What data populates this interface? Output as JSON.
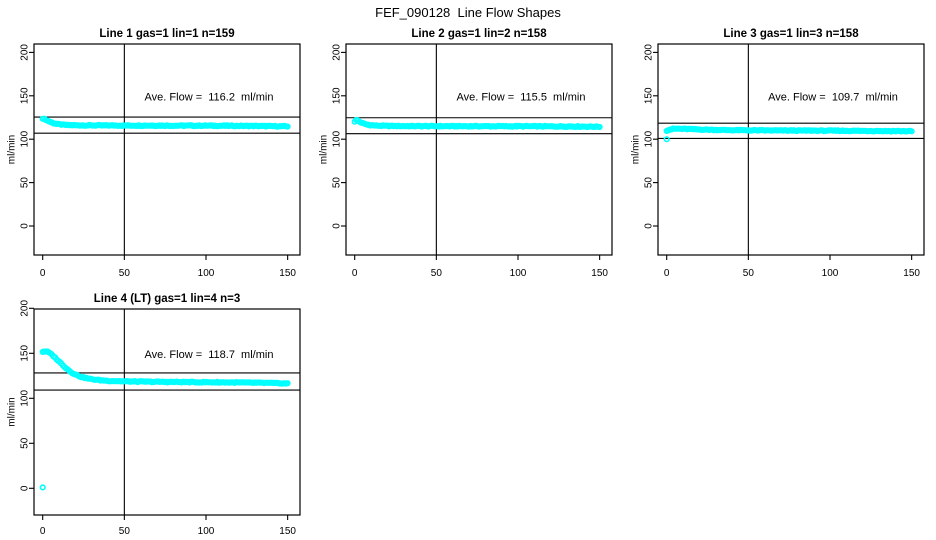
{
  "chart_data": {
    "type": "scatter",
    "title": "FEF_090128  Line Flow Shapes",
    "ylabel": "ml/min",
    "xlabel": "",
    "xticks": [
      0,
      50,
      100,
      150
    ],
    "yticks": [
      0,
      50,
      100,
      150,
      200
    ],
    "xlim": [
      -6,
      156
    ],
    "ylim": [
      -34,
      208
    ],
    "grid": "off",
    "legend": "none",
    "vline_x": 50,
    "point_color": "#00ffff",
    "line_color": "#000000",
    "panels": [
      {
        "id": "line-1",
        "grid_pos": {
          "row": 0,
          "col": 0
        },
        "title": "Line 1 gas=1 lin=1 n=159",
        "ave_flow_label": "Ave. Flow =  116.2  ml/min",
        "ave_flow": 116.2,
        "n": 159,
        "points_drawn": 159,
        "hline_upper": 125.5,
        "hline_lower": 106.9,
        "anchors": [
          [
            0,
            124
          ],
          [
            1,
            123.2
          ],
          [
            2,
            122.3
          ],
          [
            4,
            120.4
          ],
          [
            6,
            118.9
          ],
          [
            9,
            117.4
          ],
          [
            13,
            116.5
          ],
          [
            18,
            116.1
          ],
          [
            25,
            115.9
          ],
          [
            40,
            115.8
          ],
          [
            60,
            115.7
          ],
          [
            80,
            115.6
          ],
          [
            100,
            115.6
          ],
          [
            115,
            115.4
          ],
          [
            130,
            115.2
          ],
          [
            150,
            114.8
          ]
        ],
        "outliers": []
      },
      {
        "id": "line-2",
        "grid_pos": {
          "row": 0,
          "col": 1
        },
        "title": "Line 2 gas=1 lin=2 n=158",
        "ave_flow_label": "Ave. Flow =  115.5  ml/min",
        "ave_flow": 115.5,
        "n": 158,
        "points_drawn": 158,
        "hline_upper": 124.7,
        "hline_lower": 106.3,
        "anchors": [
          [
            0,
            120.5
          ],
          [
            1,
            122
          ],
          [
            2,
            121.5
          ],
          [
            3,
            120
          ],
          [
            5,
            118.2
          ],
          [
            8,
            116.6
          ],
          [
            12,
            115.8
          ],
          [
            18,
            115.3
          ],
          [
            30,
            115.1
          ],
          [
            60,
            115
          ],
          [
            100,
            114.9
          ],
          [
            130,
            114.7
          ],
          [
            150,
            114.4
          ]
        ],
        "outliers": []
      },
      {
        "id": "line-3",
        "grid_pos": {
          "row": 0,
          "col": 2
        },
        "title": "Line 3 gas=1 lin=3 n=158",
        "ave_flow_label": "Ave. Flow =  109.7  ml/min",
        "ave_flow": 109.7,
        "n": 158,
        "points_drawn": 157,
        "hline_upper": 118.5,
        "hline_lower": 100.9,
        "anchors": [
          [
            0,
            110
          ],
          [
            2,
            111.2
          ],
          [
            4,
            111.9
          ],
          [
            7,
            112.1
          ],
          [
            12,
            111.7
          ],
          [
            20,
            111.2
          ],
          [
            30,
            110.7
          ],
          [
            50,
            110.2
          ],
          [
            70,
            110
          ],
          [
            100,
            109.8
          ],
          [
            130,
            109.5
          ],
          [
            150,
            109.2
          ]
        ],
        "outliers": [
          [
            0,
            100
          ]
        ]
      },
      {
        "id": "line-4",
        "grid_pos": {
          "row": 1,
          "col": 0
        },
        "title": "Line 4 (LT) gas=1 lin=4 n=3",
        "ave_flow_label": "Ave. Flow =  118.7  ml/min",
        "ave_flow": 118.7,
        "n": 3,
        "points_drawn": 158,
        "hline_upper": 128.2,
        "hline_lower": 109.2,
        "anchors": [
          [
            0,
            151.8
          ],
          [
            2,
            152.2
          ],
          [
            4,
            150.8
          ],
          [
            6,
            147.8
          ],
          [
            8,
            144.5
          ],
          [
            10,
            141
          ],
          [
            12,
            137.5
          ],
          [
            14,
            134
          ],
          [
            16,
            131
          ],
          [
            18,
            128.4
          ],
          [
            20,
            126.4
          ],
          [
            23,
            124.2
          ],
          [
            26,
            122.6
          ],
          [
            30,
            121.2
          ],
          [
            35,
            120.1
          ],
          [
            40,
            119.4
          ],
          [
            50,
            118.8
          ],
          [
            60,
            118.5
          ],
          [
            75,
            118.2
          ],
          [
            90,
            118
          ],
          [
            105,
            117.8
          ],
          [
            120,
            117.5
          ],
          [
            135,
            117.1
          ],
          [
            150,
            116.5
          ]
        ],
        "outliers": [
          [
            0,
            1
          ]
        ]
      }
    ]
  }
}
